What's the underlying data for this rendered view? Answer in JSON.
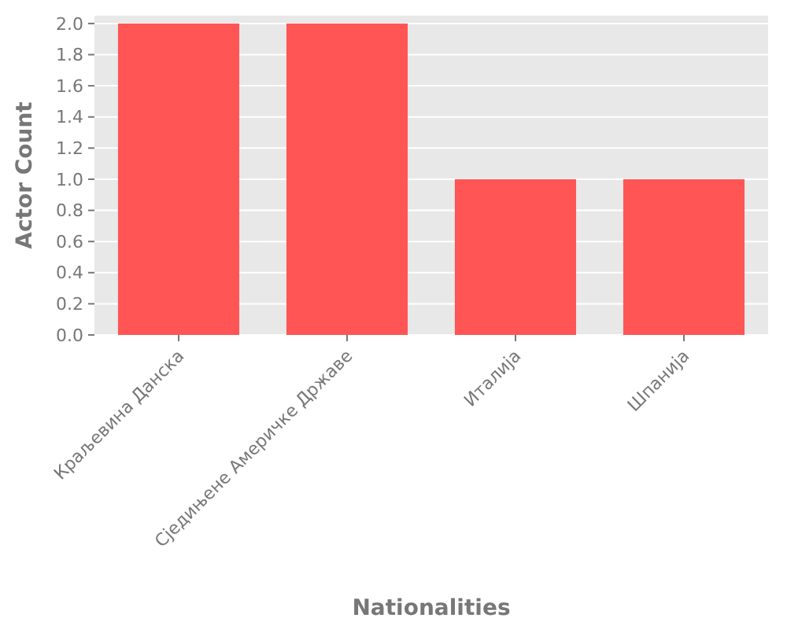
{
  "chart_data": {
    "type": "bar",
    "xlabel": "Nationalities",
    "ylabel": "Actor Count",
    "categories": [
      "Краљевина Данска",
      "Сједињене Америчке Државе",
      "Италија",
      "Шпанија"
    ],
    "values": [
      2,
      2,
      1,
      1
    ],
    "color": "#ff5555",
    "ylim": [
      0,
      2.05
    ],
    "yticks": [
      {
        "value": 0,
        "label": "0.0"
      },
      0.2,
      0.4,
      0.6,
      0.8,
      {
        "value": 1,
        "label": "1.0"
      },
      1.2,
      1.4,
      1.6,
      1.8,
      {
        "value": 2,
        "label": "2.0"
      }
    ],
    "grid": "y"
  }
}
